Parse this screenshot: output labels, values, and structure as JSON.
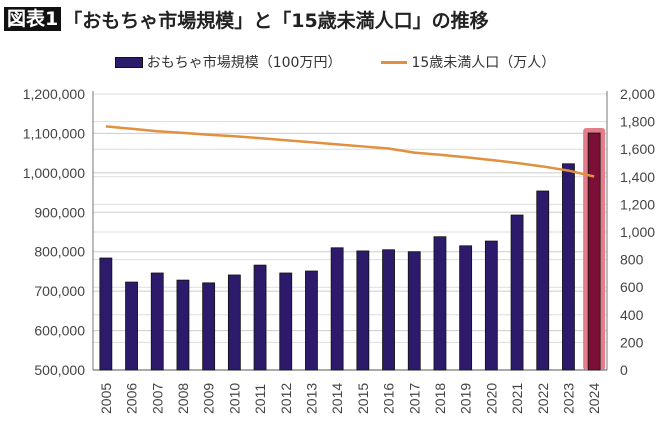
{
  "title": {
    "tag": "図表1",
    "text": "「おもちゃ市場規模」と「15歳未満人口」の推移"
  },
  "chart_data": {
    "type": "bar+line",
    "title": "「おもちゃ市場規模」と「15歳未満人口」の推移",
    "categories": [
      "2005",
      "2006",
      "2007",
      "2008",
      "2009",
      "2010",
      "2011",
      "2012",
      "2013",
      "2014",
      "2015",
      "2016",
      "2017",
      "2018",
      "2019",
      "2020",
      "2021",
      "2022",
      "2023",
      "2024"
    ],
    "series": [
      {
        "name": "おもちゃ市場規模（100万円）",
        "type": "bar",
        "axis": "left",
        "color": "#2e1a6b",
        "highlight_color": "#7a1036",
        "highlight_index": 19,
        "values": [
          784000,
          723000,
          746000,
          728000,
          721000,
          741000,
          766000,
          746000,
          751000,
          810000,
          802000,
          805000,
          800000,
          838000,
          815000,
          827000,
          893000,
          954000,
          1023000,
          1101000
        ]
      },
      {
        "name": "15歳未満人口（万人）",
        "type": "line",
        "axis": "right",
        "color": "#e0903e",
        "values": [
          1765,
          1748,
          1730,
          1718,
          1705,
          1694,
          1680,
          1665,
          1650,
          1635,
          1620,
          1605,
          1575,
          1560,
          1542,
          1522,
          1500,
          1475,
          1445,
          1402
        ]
      }
    ],
    "ylim_left": [
      500000,
      1200000
    ],
    "yticks_left": [
      "500,000",
      "600,000",
      "700,000",
      "800,000",
      "900,000",
      "1,000,000",
      "1,100,000",
      "1,200,000"
    ],
    "ylim_right": [
      0,
      2000
    ],
    "yticks_right": [
      "0",
      "200",
      "400",
      "600",
      "800",
      "1,000",
      "1,200",
      "1,400",
      "1,600",
      "1,800",
      "2,000"
    ],
    "grid": true,
    "legend": "top"
  }
}
